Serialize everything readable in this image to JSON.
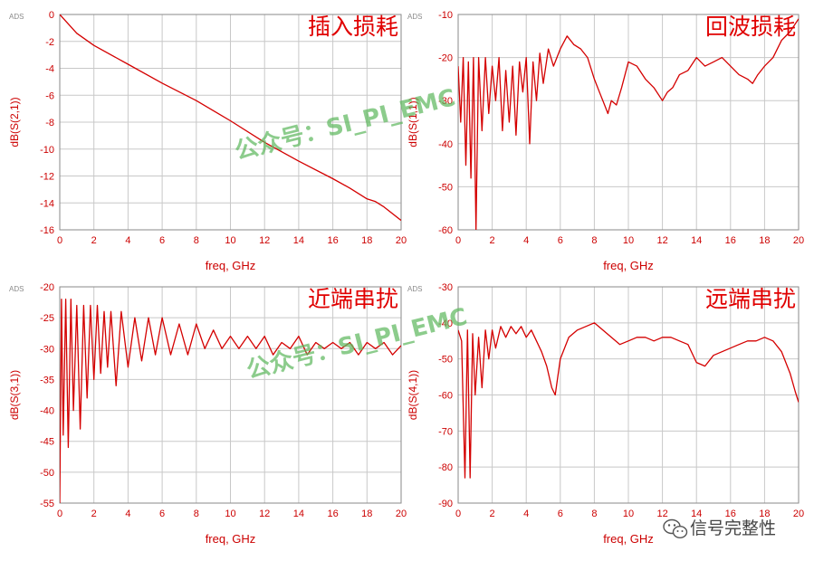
{
  "colors": {
    "trace": "#d40000",
    "grid": "#c8c8c8",
    "axis_text": "#cc0000",
    "title": "#e00000",
    "watermark": "#5fb85f"
  },
  "ads_tag": "ADS",
  "watermarks": [
    "公众号：SI_PI_EMC",
    "公众号：SI_PI_EMC"
  ],
  "footer": {
    "icon": "wechat-icon",
    "text": "信号完整性"
  },
  "chart_data": [
    {
      "type": "line",
      "title": "插入损耗",
      "xlabel": "freq, GHz",
      "ylabel": "dB(S(2,1))",
      "xlim": [
        0,
        20
      ],
      "ylim": [
        -16,
        0
      ],
      "grid": true,
      "xticks": [
        "0",
        "2",
        "4",
        "6",
        "8",
        "10",
        "12",
        "14",
        "16",
        "18",
        "20"
      ],
      "yticks": [
        "0",
        "-2",
        "-4",
        "-6",
        "-8",
        "-10",
        "-12",
        "-14",
        "-16"
      ],
      "series": [
        {
          "x": [
            0,
            1,
            2,
            4,
            6,
            8,
            10,
            12,
            14,
            16,
            17,
            18,
            18.5,
            19,
            20
          ],
          "y": [
            0,
            -1.4,
            -2.3,
            -3.7,
            -5.1,
            -6.4,
            -7.9,
            -9.5,
            -10.9,
            -12.2,
            -12.9,
            -13.7,
            -13.9,
            -14.3,
            -15.3
          ]
        }
      ]
    },
    {
      "type": "line",
      "title": "回波损耗",
      "xlabel": "freq, GHz",
      "ylabel": "dB(S(1,1))",
      "xlim": [
        0,
        20
      ],
      "ylim": [
        -60,
        -10
      ],
      "grid": true,
      "xticks": [
        "0",
        "2",
        "4",
        "6",
        "8",
        "10",
        "12",
        "14",
        "16",
        "18",
        "20"
      ],
      "yticks": [
        "-10",
        "-20",
        "-30",
        "-40",
        "-50",
        "-60"
      ],
      "series": [
        {
          "x": [
            0,
            0.15,
            0.3,
            0.45,
            0.6,
            0.75,
            0.9,
            1.05,
            1.2,
            1.4,
            1.6,
            1.8,
            2.0,
            2.2,
            2.4,
            2.6,
            2.8,
            3.0,
            3.2,
            3.4,
            3.6,
            3.8,
            4.0,
            4.2,
            4.4,
            4.6,
            4.8,
            5.0,
            5.3,
            5.6,
            6.0,
            6.4,
            6.8,
            7.2,
            7.6,
            8.0,
            8.3,
            8.6,
            8.8,
            9.0,
            9.3,
            9.6,
            10.0,
            10.5,
            11.0,
            11.5,
            12.0,
            12.3,
            12.6,
            13.0,
            13.5,
            14.0,
            14.5,
            15.0,
            15.5,
            16.0,
            16.5,
            17.0,
            17.3,
            17.6,
            18.0,
            18.5,
            19.0,
            19.5,
            20.0
          ],
          "y": [
            -22,
            -35,
            -20,
            -45,
            -21,
            -48,
            -20,
            -60,
            -20,
            -37,
            -20,
            -33,
            -22,
            -30,
            -20,
            -37,
            -23,
            -35,
            -22,
            -38,
            -21,
            -28,
            -20,
            -40,
            -21,
            -30,
            -19,
            -26,
            -18,
            -22,
            -18,
            -15,
            -17,
            -18,
            -20,
            -25,
            -28,
            -31,
            -33,
            -30,
            -31,
            -27,
            -21,
            -22,
            -25,
            -27,
            -30,
            -28,
            -27,
            -24,
            -23,
            -20,
            -22,
            -21,
            -20,
            -22,
            -24,
            -25,
            -26,
            -24,
            -22,
            -20,
            -16,
            -14,
            -11
          ]
        }
      ]
    },
    {
      "type": "line",
      "title": "近端串扰",
      "xlabel": "freq, GHz",
      "ylabel": "dB(S(3,1))",
      "xlim": [
        0,
        20
      ],
      "ylim": [
        -55,
        -20
      ],
      "grid": true,
      "xticks": [
        "0",
        "2",
        "4",
        "6",
        "8",
        "10",
        "12",
        "14",
        "16",
        "18",
        "20"
      ],
      "yticks": [
        "-20",
        "-25",
        "-30",
        "-35",
        "-40",
        "-45",
        "-50",
        "-55"
      ],
      "series": [
        {
          "x": [
            0,
            0.1,
            0.2,
            0.35,
            0.5,
            0.65,
            0.8,
            1.0,
            1.2,
            1.4,
            1.6,
            1.8,
            2.0,
            2.2,
            2.4,
            2.6,
            2.8,
            3.0,
            3.3,
            3.6,
            4.0,
            4.4,
            4.8,
            5.2,
            5.6,
            6.0,
            6.5,
            7.0,
            7.5,
            8.0,
            8.5,
            9.0,
            9.5,
            10.0,
            10.5,
            11.0,
            11.5,
            12.0,
            12.5,
            13.0,
            13.5,
            14.0,
            14.5,
            15.0,
            15.5,
            16.0,
            16.5,
            17.0,
            17.5,
            18.0,
            18.5,
            19.0,
            19.5,
            20.0
          ],
          "y": [
            -55,
            -22,
            -44,
            -22,
            -46,
            -22,
            -40,
            -23,
            -43,
            -23,
            -38,
            -23,
            -35,
            -23,
            -34,
            -24,
            -33,
            -24,
            -36,
            -24,
            -33,
            -25,
            -32,
            -25,
            -31,
            -25,
            -31,
            -26,
            -31,
            -26,
            -30,
            -27,
            -30,
            -28,
            -30,
            -28,
            -30,
            -28,
            -31,
            -29,
            -30,
            -28,
            -31,
            -29,
            -30,
            -29,
            -30,
            -29,
            -31,
            -29,
            -30,
            -29,
            -31,
            -29.5
          ]
        }
      ]
    },
    {
      "type": "line",
      "title": "远端串扰",
      "xlabel": "freq, GHz",
      "ylabel": "dB(S(4,1))",
      "xlim": [
        0,
        20
      ],
      "ylim": [
        -90,
        -30
      ],
      "grid": true,
      "xticks": [
        "0",
        "2",
        "4",
        "6",
        "8",
        "10",
        "12",
        "14",
        "16",
        "18",
        "20"
      ],
      "yticks": [
        "-30",
        "-40",
        "-50",
        "-60",
        "-70",
        "-80",
        "-90"
      ],
      "series": [
        {
          "x": [
            0,
            0.2,
            0.4,
            0.55,
            0.7,
            0.85,
            1.0,
            1.2,
            1.4,
            1.6,
            1.8,
            2.0,
            2.2,
            2.5,
            2.8,
            3.1,
            3.4,
            3.7,
            4.0,
            4.3,
            4.6,
            4.9,
            5.2,
            5.5,
            5.7,
            6.0,
            6.5,
            7.0,
            7.5,
            8.0,
            8.5,
            9.0,
            9.5,
            10.0,
            10.5,
            11.0,
            11.5,
            12.0,
            12.5,
            13.0,
            13.5,
            14.0,
            14.5,
            15.0,
            15.5,
            16.0,
            16.5,
            17.0,
            17.5,
            18.0,
            18.5,
            19.0,
            19.5,
            19.8,
            20.0
          ],
          "y": [
            -42,
            -45,
            -83,
            -42,
            -83,
            -43,
            -60,
            -44,
            -58,
            -42,
            -50,
            -42,
            -47,
            -41,
            -44,
            -41,
            -43,
            -41,
            -44,
            -42,
            -45,
            -48,
            -52,
            -58,
            -60,
            -50,
            -44,
            -42,
            -41,
            -40,
            -42,
            -44,
            -46,
            -45,
            -44,
            -44,
            -45,
            -44,
            -44,
            -45,
            -46,
            -51,
            -52,
            -49,
            -48,
            -47,
            -46,
            -45,
            -45,
            -44,
            -45,
            -48,
            -54,
            -59,
            -62
          ]
        }
      ]
    }
  ]
}
